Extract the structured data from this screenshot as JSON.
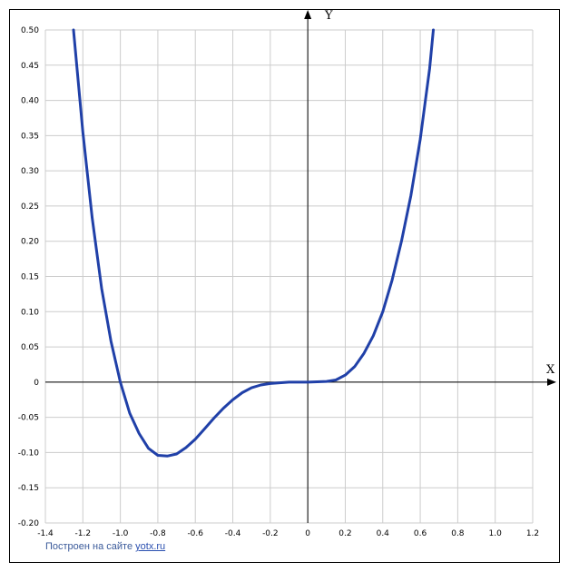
{
  "chart_data": {
    "type": "line",
    "xlabel": "X",
    "ylabel": "Y",
    "xlim": [
      -1.4,
      1.2
    ],
    "ylim": [
      -0.2,
      0.5
    ],
    "x_ticks": [
      "-1.4",
      "-1.2",
      "-1.0",
      "-0.8",
      "-0.6",
      "-0.4",
      "-0.2",
      "0",
      "0.2",
      "0.4",
      "0.6",
      "0.8",
      "1.0",
      "1.2"
    ],
    "y_ticks": [
      "0.50",
      "0.45",
      "0.40",
      "0.35",
      "0.30",
      "0.25",
      "0.20",
      "0.15",
      "0.10",
      "0.05",
      "0",
      "-0.05",
      "-0.10",
      "-0.15",
      "-0.20"
    ],
    "grid": true,
    "series": [
      {
        "color": "#2040a8",
        "points": [
          [
            -1.25,
            0.5
          ],
          [
            -1.2,
            0.355
          ],
          [
            -1.15,
            0.233
          ],
          [
            -1.1,
            0.133
          ],
          [
            -1.05,
            0.058
          ],
          [
            -1.0,
            0.0
          ],
          [
            -0.95,
            -0.044
          ],
          [
            -0.9,
            -0.073
          ],
          [
            -0.85,
            -0.094
          ],
          [
            -0.8,
            -0.104
          ],
          [
            -0.75,
            -0.105
          ],
          [
            -0.7,
            -0.102
          ],
          [
            -0.65,
            -0.093
          ],
          [
            -0.6,
            -0.081
          ],
          [
            -0.55,
            -0.066
          ],
          [
            -0.5,
            -0.051
          ],
          [
            -0.45,
            -0.037
          ],
          [
            -0.4,
            -0.025
          ],
          [
            -0.35,
            -0.015
          ],
          [
            -0.3,
            -0.008
          ],
          [
            -0.25,
            -0.004
          ],
          [
            -0.2,
            -0.002
          ],
          [
            -0.15,
            -0.001
          ],
          [
            -0.1,
            0.0
          ],
          [
            0.0,
            0.0
          ],
          [
            0.1,
            0.001
          ],
          [
            0.15,
            0.003
          ],
          [
            0.2,
            0.01
          ],
          [
            0.25,
            0.022
          ],
          [
            0.3,
            0.041
          ],
          [
            0.35,
            0.066
          ],
          [
            0.4,
            0.1
          ],
          [
            0.45,
            0.145
          ],
          [
            0.5,
            0.2
          ],
          [
            0.55,
            0.265
          ],
          [
            0.6,
            0.345
          ],
          [
            0.65,
            0.445
          ],
          [
            0.67,
            0.5
          ]
        ]
      }
    ]
  },
  "credit": {
    "text": "Построен на сайте",
    "link": "yotx.ru"
  }
}
